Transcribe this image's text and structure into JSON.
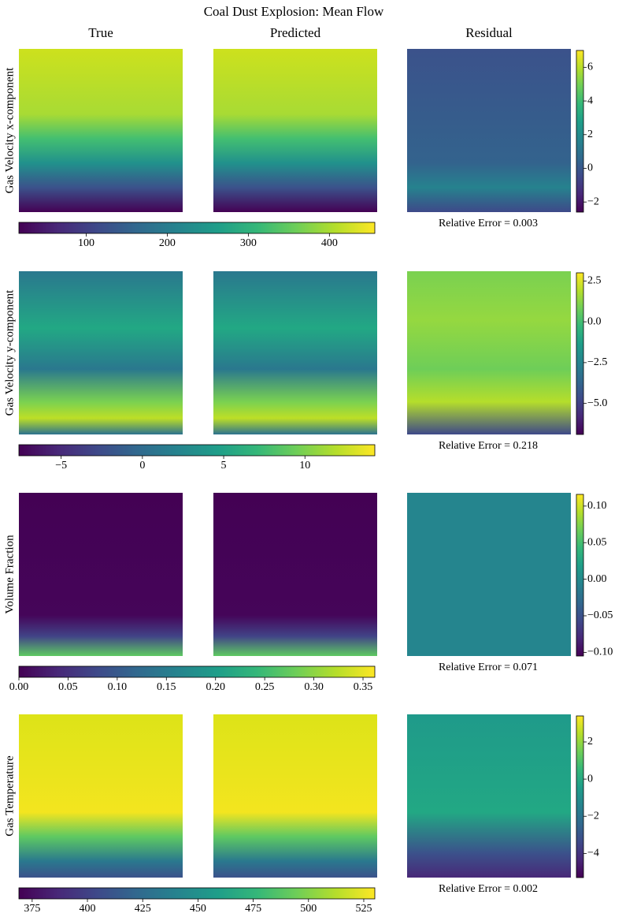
{
  "title": "Coal Dust Explosion: Mean Flow",
  "columns": [
    "True",
    "Predicted",
    "Residual"
  ],
  "chart_data": [
    {
      "type": "heatmap",
      "ylabel": "Gas Velocity x-component",
      "colorbar": {
        "lim": [
          17,
          456
        ],
        "ticks": [
          100,
          200,
          300,
          400
        ]
      },
      "residual_colorbar": {
        "lim": [
          -2.6,
          7.0
        ],
        "ticks": [
          {
            "value": -2,
            "label": "−2"
          },
          0,
          2,
          4,
          6
        ]
      },
      "annotation": "Relative Error = 0.003"
    },
    {
      "type": "heatmap",
      "ylabel": "Gas Velocity y-component",
      "colorbar": {
        "lim": [
          -7.6,
          14.3
        ],
        "ticks": [
          {
            "value": -5,
            "label": "−5"
          },
          0,
          5,
          10
        ]
      },
      "residual_colorbar": {
        "lim": [
          -6.9,
          3.0
        ],
        "ticks": [
          {
            "value": -5,
            "label": "−5.0"
          },
          {
            "value": -2.5,
            "label": "−2.5"
          },
          {
            "value": 0,
            "label": "0.0"
          },
          2.5
        ]
      },
      "annotation": "Relative Error = 0.218"
    },
    {
      "type": "heatmap",
      "ylabel": "Volume Fraction",
      "colorbar": {
        "lim": [
          0,
          0.362
        ],
        "ticks": [
          {
            "value": 0,
            "label": "0.00"
          },
          0.05,
          {
            "value": 0.1,
            "label": "0.10"
          },
          0.15,
          {
            "value": 0.2,
            "label": "0.20"
          },
          0.25,
          {
            "value": 0.3,
            "label": "0.30"
          },
          0.35
        ]
      },
      "residual_colorbar": {
        "lim": [
          -0.105,
          0.116
        ],
        "ticks": [
          {
            "value": -0.1,
            "label": "−0.10"
          },
          {
            "value": -0.05,
            "label": "−0.05"
          },
          {
            "value": 0,
            "label": "0.00"
          },
          0.05,
          {
            "value": 0.1,
            "label": "0.10"
          }
        ]
      },
      "annotation": "Relative Error = 0.071"
    },
    {
      "type": "heatmap",
      "ylabel": "Gas Temperature",
      "colorbar": {
        "lim": [
          369,
          530
        ],
        "ticks": [
          375,
          400,
          425,
          450,
          475,
          500,
          525
        ]
      },
      "residual_colorbar": {
        "lim": [
          -5.3,
          3.4
        ],
        "ticks": [
          {
            "value": -4,
            "label": "−4"
          },
          {
            "value": -2,
            "label": "−2"
          },
          0,
          2
        ]
      },
      "annotation": "Relative Error = 0.002"
    }
  ]
}
